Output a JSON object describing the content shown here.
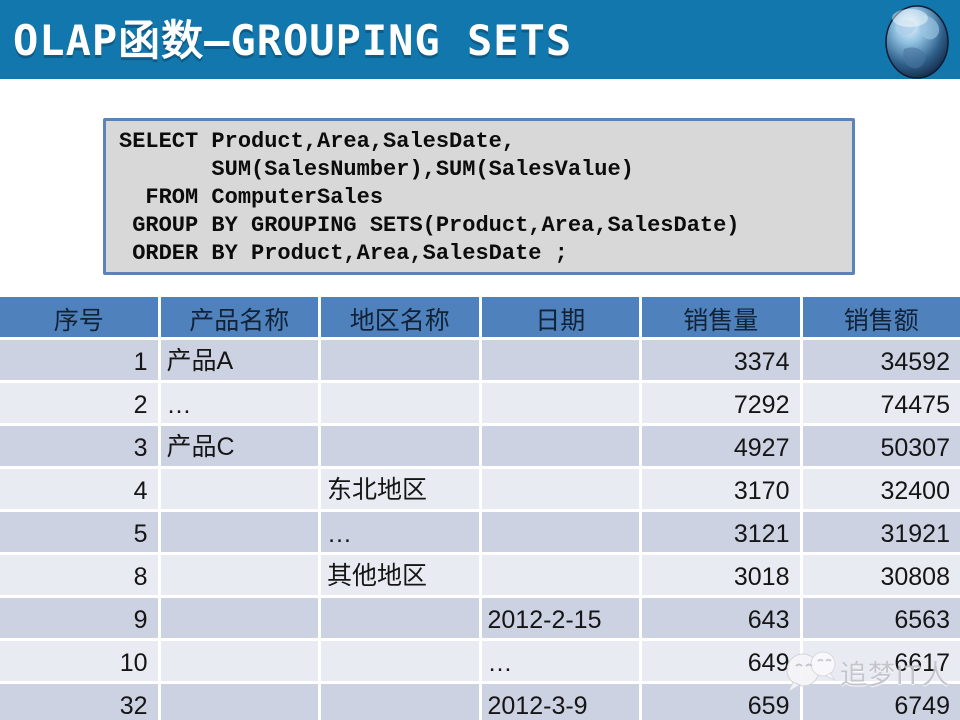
{
  "title": "OLAP函数—GROUPING SETS",
  "sql_code": "SELECT Product,Area,SalesDate,\n       SUM(SalesNumber),SUM(SalesValue)\n  FROM ComputerSales\n GROUP BY GROUPING SETS(Product,Area,SalesDate)\n ORDER BY Product,Area,SalesDate ;",
  "table": {
    "headers": [
      "序号",
      "产品名称",
      "地区名称",
      "日期",
      "销售量",
      "销售额"
    ],
    "rows": [
      [
        "1",
        "产品A",
        "",
        "",
        "3374",
        "34592"
      ],
      [
        "2",
        "…",
        "",
        "",
        "7292",
        "74475"
      ],
      [
        "3",
        "产品C",
        "",
        "",
        "4927",
        "50307"
      ],
      [
        "4",
        "",
        "东北地区",
        "",
        "3170",
        "32400"
      ],
      [
        "5",
        "",
        "…",
        "",
        "3121",
        "31921"
      ],
      [
        "8",
        "",
        "其他地区",
        "",
        "3018",
        "30808"
      ],
      [
        "9",
        "",
        "",
        "2012-2-15",
        "643",
        "6563"
      ],
      [
        "10",
        "",
        "",
        "…",
        "649",
        "6617"
      ],
      [
        "32",
        "",
        "",
        "2012-3-9",
        "659",
        "6749"
      ]
    ]
  },
  "watermark": {
    "text": "追梦IT人"
  },
  "icons": {
    "globe": "globe-icon",
    "wechat": "wechat-logo-icon"
  },
  "colors": {
    "titlebar": "#1277ac",
    "header-blue": "#4f81bd",
    "header-text": "#102338",
    "row-dark": "#ccd2e2",
    "row-light": "#e9ebf2",
    "sql-bg": "#d8d8d8",
    "sql-border": "#5b83b8",
    "watermark": "#c3c3ca"
  }
}
